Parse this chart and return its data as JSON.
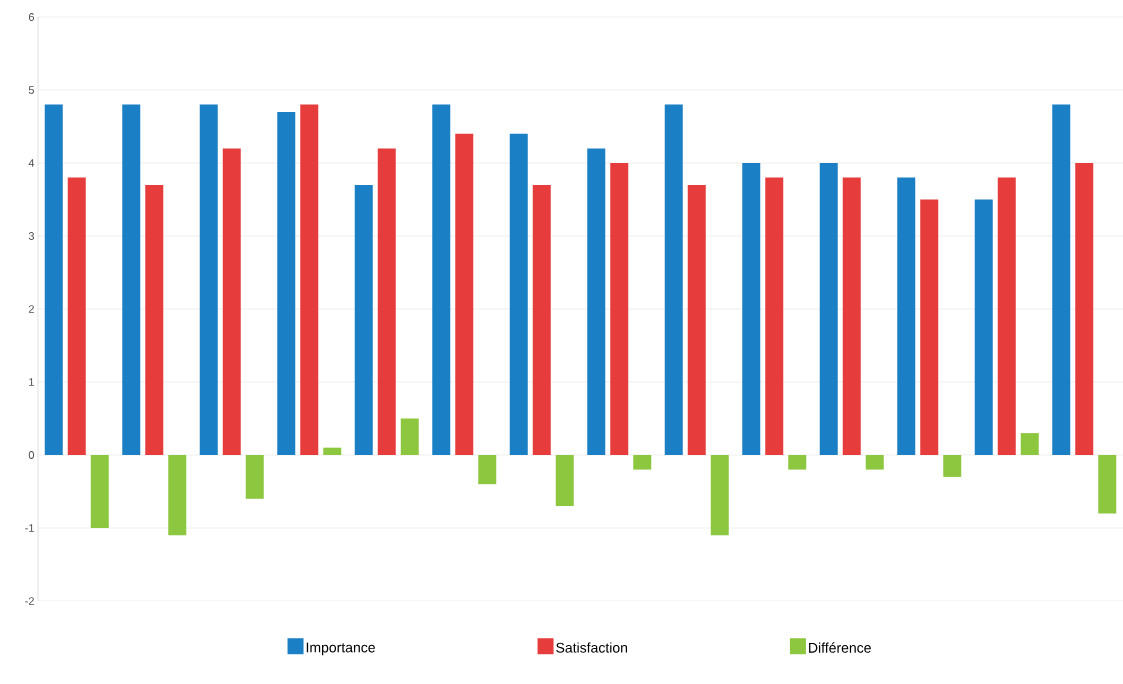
{
  "chart_data": {
    "type": "bar",
    "categories": [
      null,
      null,
      null,
      null,
      null,
      null,
      null,
      null,
      null,
      null,
      null,
      null,
      null,
      null
    ],
    "series": [
      {
        "name": "Importance",
        "color": "#1a7fc4",
        "values": [
          4.8,
          4.8,
          4.8,
          4.7,
          3.7,
          4.8,
          4.4,
          4.2,
          4.8,
          4.0,
          4.0,
          3.8,
          3.5,
          4.8
        ]
      },
      {
        "name": "Satisfaction",
        "color": "#e63c3c",
        "values": [
          3.8,
          3.7,
          4.2,
          4.8,
          4.2,
          4.4,
          3.7,
          4.0,
          3.7,
          3.8,
          3.8,
          3.5,
          3.8,
          4.0
        ]
      },
      {
        "name": "Différence",
        "color": "#8dc63f",
        "values": [
          -1.0,
          -1.1,
          -0.6,
          0.1,
          0.5,
          -0.4,
          -0.7,
          -0.2,
          -1.1,
          -0.2,
          -0.2,
          -0.3,
          0.3,
          -0.8
        ]
      }
    ],
    "ylim": [
      -2,
      6
    ],
    "yticks": [
      -2,
      -1,
      0,
      1,
      2,
      3,
      4,
      5,
      6
    ],
    "grid": "y",
    "legend": "bottom",
    "tick_labels": "y"
  }
}
